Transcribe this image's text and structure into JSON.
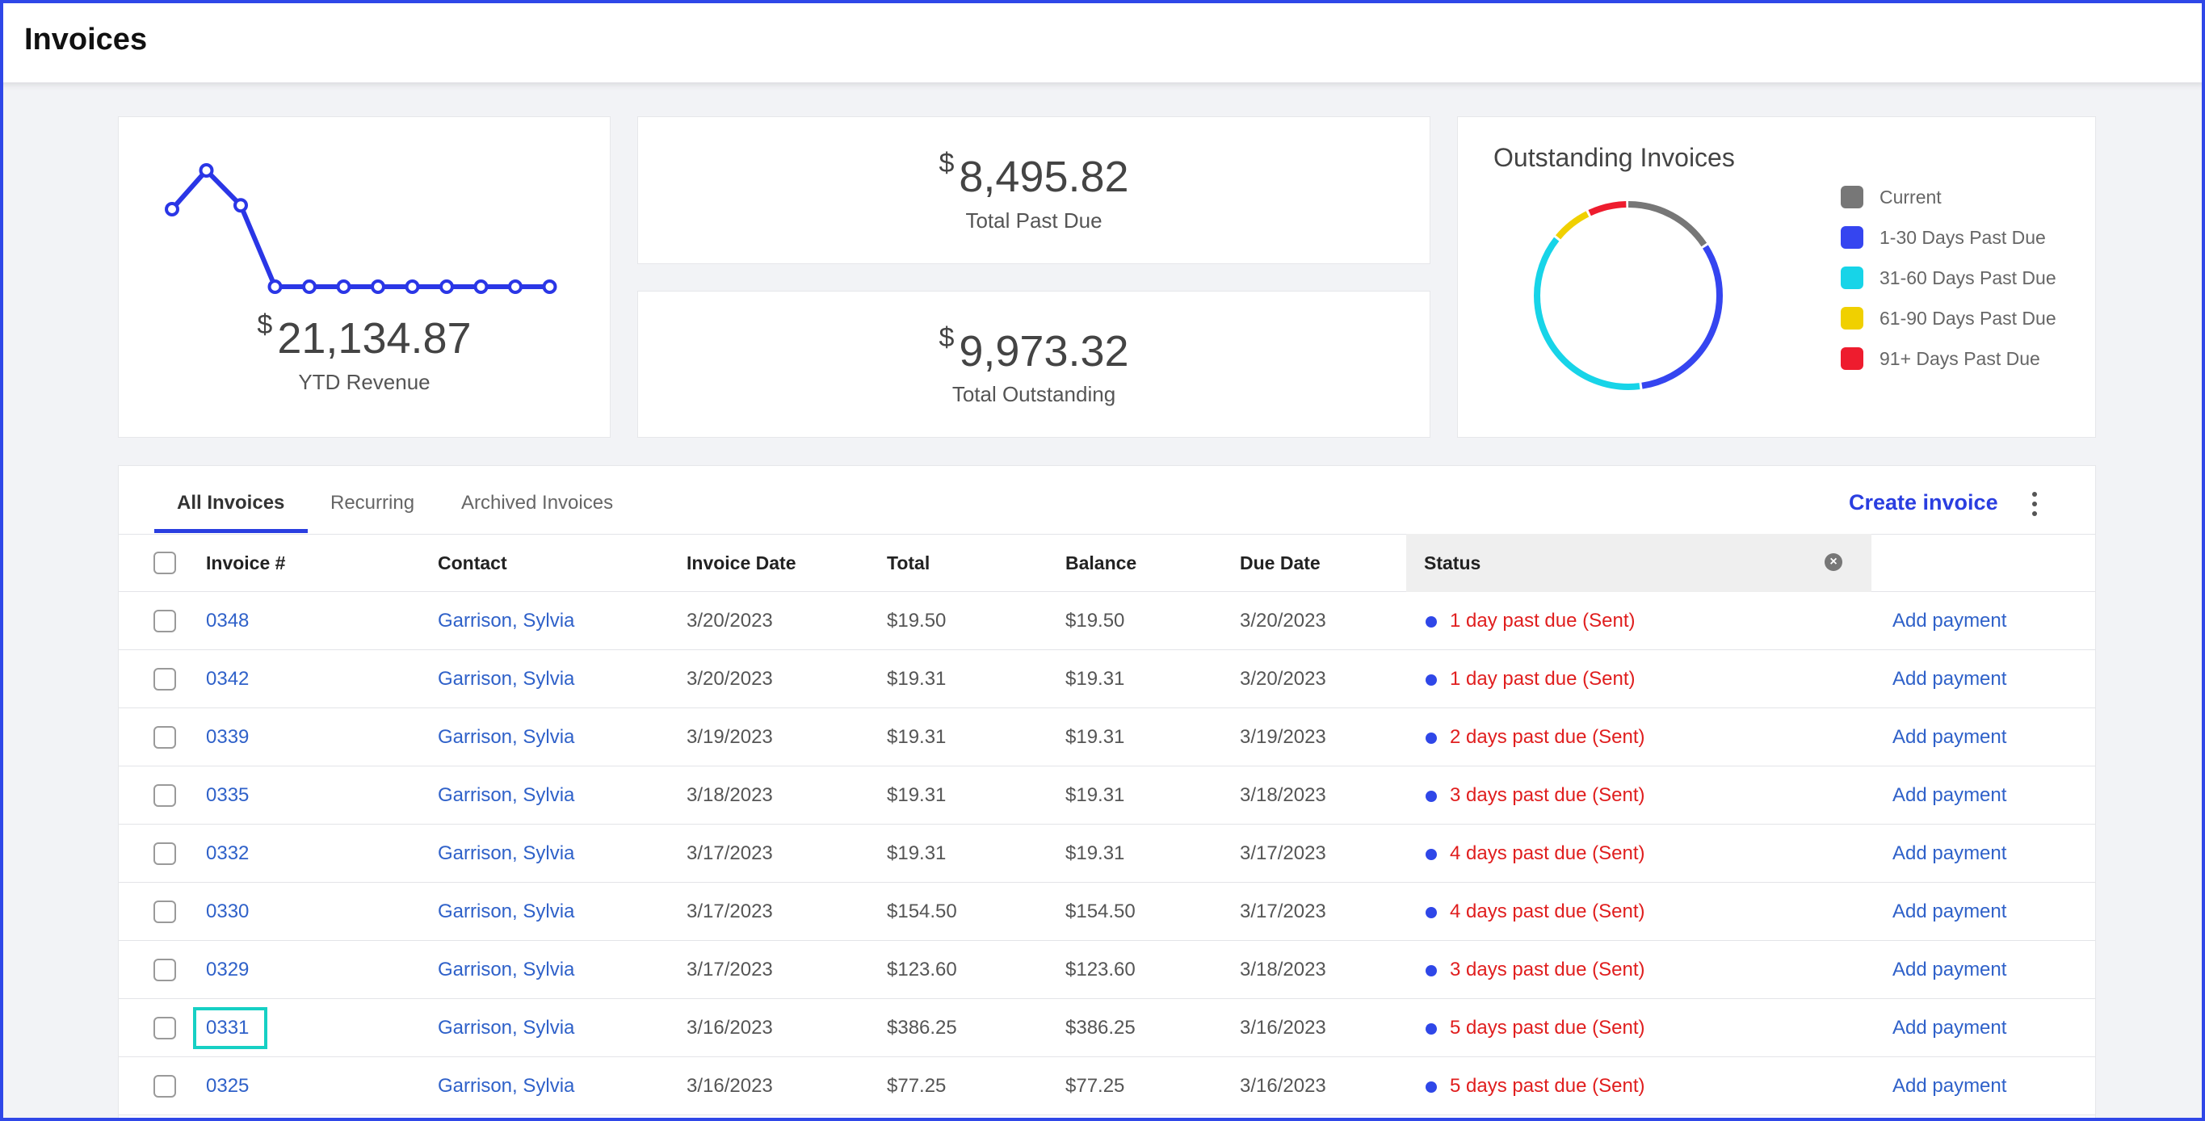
{
  "header": {
    "title": "Invoices"
  },
  "ytd": {
    "currency": "$",
    "amount": "21,134.87",
    "label": "YTD Revenue",
    "spark_color": "#2a36e6",
    "spark_values": [
      0.5,
      1.0,
      0.55,
      -0.5,
      -0.5,
      -0.5,
      -0.5,
      -0.5,
      -0.5,
      -0.5,
      -0.5,
      -0.5
    ]
  },
  "past_due": {
    "currency": "$",
    "amount": "8,495.82",
    "label": "Total Past Due"
  },
  "outstanding": {
    "currency": "$",
    "amount": "9,973.32",
    "label": "Total Outstanding"
  },
  "donut": {
    "title": "Outstanding Invoices",
    "legend": [
      {
        "label": "Current",
        "color": "#777777"
      },
      {
        "label": "1-30 Days Past Due",
        "color": "#3545f0"
      },
      {
        "label": "31-60 Days Past Due",
        "color": "#17d4e8"
      },
      {
        "label": "61-90 Days Past Due",
        "color": "#f0d000"
      },
      {
        "label": "91+ Days Past Due",
        "color": "#ee1c2e"
      }
    ],
    "segments": [
      {
        "color": "#777777",
        "fraction": 0.16
      },
      {
        "color": "#3545f0",
        "fraction": 0.32
      },
      {
        "color": "#17d4e8",
        "fraction": 0.38
      },
      {
        "color": "#f0d000",
        "fraction": 0.07
      },
      {
        "color": "#ee1c2e",
        "fraction": 0.07
      }
    ]
  },
  "tabs": {
    "all": "All Invoices",
    "recurring": "Recurring",
    "archived": "Archived Invoices"
  },
  "actions": {
    "create": "Create invoice",
    "more_icon": "more-vertical-icon"
  },
  "columns": {
    "invoice": "Invoice #",
    "contact": "Contact",
    "date": "Invoice Date",
    "total": "Total",
    "balance": "Balance",
    "due": "Due Date",
    "status": "Status"
  },
  "rows": [
    {
      "invoice": "0348",
      "contact": "Garrison, Sylvia",
      "date": "3/20/2023",
      "total": "$19.50",
      "balance": "$19.50",
      "due": "3/20/2023",
      "status": "1 day past due (Sent)",
      "action": "Add payment"
    },
    {
      "invoice": "0342",
      "contact": "Garrison, Sylvia",
      "date": "3/20/2023",
      "total": "$19.31",
      "balance": "$19.31",
      "due": "3/20/2023",
      "status": "1 day past due (Sent)",
      "action": "Add payment"
    },
    {
      "invoice": "0339",
      "contact": "Garrison, Sylvia",
      "date": "3/19/2023",
      "total": "$19.31",
      "balance": "$19.31",
      "due": "3/19/2023",
      "status": "2 days past due (Sent)",
      "action": "Add payment"
    },
    {
      "invoice": "0335",
      "contact": "Garrison, Sylvia",
      "date": "3/18/2023",
      "total": "$19.31",
      "balance": "$19.31",
      "due": "3/18/2023",
      "status": "3 days past due (Sent)",
      "action": "Add payment"
    },
    {
      "invoice": "0332",
      "contact": "Garrison, Sylvia",
      "date": "3/17/2023",
      "total": "$19.31",
      "balance": "$19.31",
      "due": "3/17/2023",
      "status": "4 days past due (Sent)",
      "action": "Add payment"
    },
    {
      "invoice": "0330",
      "contact": "Garrison, Sylvia",
      "date": "3/17/2023",
      "total": "$154.50",
      "balance": "$154.50",
      "due": "3/17/2023",
      "status": "4 days past due (Sent)",
      "action": "Add payment"
    },
    {
      "invoice": "0329",
      "contact": "Garrison, Sylvia",
      "date": "3/17/2023",
      "total": "$123.60",
      "balance": "$123.60",
      "due": "3/18/2023",
      "status": "3 days past due (Sent)",
      "action": "Add payment"
    },
    {
      "invoice": "0331",
      "contact": "Garrison, Sylvia",
      "date": "3/16/2023",
      "total": "$386.25",
      "balance": "$386.25",
      "due": "3/16/2023",
      "status": "5 days past due (Sent)",
      "action": "Add payment",
      "focused": true
    },
    {
      "invoice": "0325",
      "contact": "Garrison, Sylvia",
      "date": "3/16/2023",
      "total": "$77.25",
      "balance": "$77.25",
      "due": "3/16/2023",
      "status": "5 days past due (Sent)",
      "action": "Add payment"
    }
  ]
}
